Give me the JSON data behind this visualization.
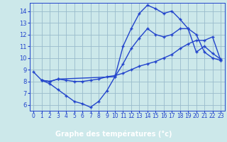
{
  "xlabel": "Graphe des températures (°c)",
  "bg_color": "#cce8ea",
  "plot_bg_color": "#cce8ea",
  "xaxis_bar_color": "#2255bb",
  "line_color": "#2244cc",
  "grid_color": "#99bbcc",
  "xlim": [
    -0.5,
    23.5
  ],
  "ylim": [
    5.5,
    14.7
  ],
  "yticks": [
    6,
    7,
    8,
    9,
    10,
    11,
    12,
    13,
    14
  ],
  "xticks": [
    0,
    1,
    2,
    3,
    4,
    5,
    6,
    7,
    8,
    9,
    10,
    11,
    12,
    13,
    14,
    15,
    16,
    17,
    18,
    19,
    20,
    21,
    22,
    23
  ],
  "line1_x": [
    0,
    1,
    2,
    3,
    10,
    11,
    12,
    13,
    14,
    15,
    16,
    17,
    18,
    19,
    20,
    21,
    22,
    23
  ],
  "line1_y": [
    8.8,
    8.1,
    8.0,
    8.2,
    8.4,
    11.0,
    12.5,
    13.8,
    14.5,
    14.2,
    13.8,
    14.0,
    13.3,
    12.5,
    10.5,
    11.0,
    10.4,
    9.9
  ],
  "line2_x": [
    1,
    2,
    3,
    4,
    5,
    6,
    7,
    8,
    9,
    10,
    11,
    12,
    13,
    14,
    15,
    16,
    17,
    18,
    19,
    20,
    21,
    22,
    23
  ],
  "line2_y": [
    8.1,
    7.8,
    7.3,
    6.8,
    6.3,
    6.1,
    5.8,
    6.3,
    7.2,
    8.4,
    9.5,
    10.8,
    11.7,
    12.5,
    12.0,
    11.8,
    12.0,
    12.5,
    12.5,
    12.0,
    10.5,
    10.0,
    9.8
  ],
  "line3_x": [
    1,
    2,
    3,
    4,
    5,
    6,
    7,
    8,
    9,
    10,
    11,
    12,
    13,
    14,
    15,
    16,
    17,
    18,
    19,
    20,
    21,
    22,
    23
  ],
  "line3_y": [
    8.1,
    8.0,
    8.2,
    8.1,
    8.0,
    8.0,
    8.1,
    8.2,
    8.4,
    8.5,
    8.7,
    9.0,
    9.3,
    9.5,
    9.7,
    10.0,
    10.3,
    10.8,
    11.2,
    11.5,
    11.5,
    11.8,
    9.8
  ],
  "xlabel_fontsize": 7,
  "tick_fontsize": 5.5,
  "lw": 1.0,
  "marker_size": 3.5
}
